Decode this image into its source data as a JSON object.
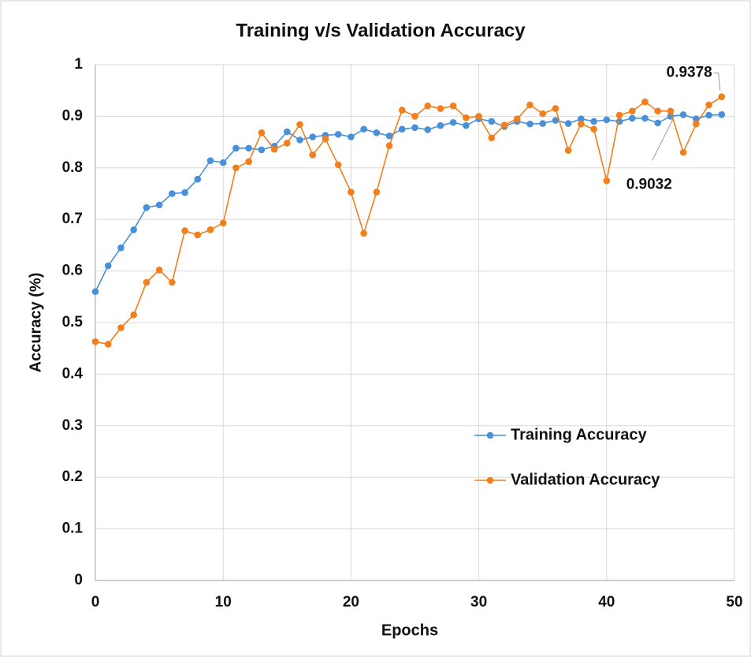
{
  "chart_data": {
    "type": "line",
    "title": "Training v/s Validation Accuracy",
    "x_label": "Epochs",
    "y_label": "Accuracy (%)",
    "x": [
      0,
      1,
      2,
      3,
      4,
      5,
      6,
      7,
      8,
      9,
      10,
      11,
      12,
      13,
      14,
      15,
      16,
      17,
      18,
      19,
      20,
      21,
      22,
      23,
      24,
      25,
      26,
      27,
      28,
      29,
      30,
      31,
      32,
      33,
      34,
      35,
      36,
      37,
      38,
      39,
      40,
      41,
      42,
      43,
      44,
      45,
      46,
      47,
      48,
      49
    ],
    "series": [
      {
        "name": "Training Accuracy",
        "color": "#4a90d9",
        "values": [
          0.56,
          0.61,
          0.645,
          0.68,
          0.723,
          0.728,
          0.75,
          0.752,
          0.778,
          0.814,
          0.81,
          0.838,
          0.838,
          0.835,
          0.842,
          0.87,
          0.854,
          0.86,
          0.863,
          0.865,
          0.86,
          0.875,
          0.868,
          0.862,
          0.875,
          0.878,
          0.874,
          0.882,
          0.888,
          0.882,
          0.895,
          0.89,
          0.88,
          0.89,
          0.885,
          0.886,
          0.892,
          0.886,
          0.895,
          0.89,
          0.893,
          0.89,
          0.896,
          0.896,
          0.887,
          0.9,
          0.903,
          0.895,
          0.902,
          0.9032
        ]
      },
      {
        "name": "Validation Accuracy",
        "color": "#f07f1c",
        "values": [
          0.463,
          0.458,
          0.49,
          0.515,
          0.578,
          0.602,
          0.578,
          0.678,
          0.67,
          0.68,
          0.693,
          0.8,
          0.812,
          0.868,
          0.836,
          0.848,
          0.884,
          0.825,
          0.856,
          0.806,
          0.753,
          0.673,
          0.753,
          0.843,
          0.912,
          0.9,
          0.92,
          0.915,
          0.92,
          0.897,
          0.9,
          0.858,
          0.883,
          0.895,
          0.922,
          0.905,
          0.915,
          0.834,
          0.885,
          0.875,
          0.775,
          0.902,
          0.91,
          0.928,
          0.91,
          0.91,
          0.83,
          0.885,
          0.922,
          0.9378
        ]
      }
    ],
    "annotations": [
      "0.9378",
      "0.9032"
    ],
    "xlim": [
      0,
      50
    ],
    "xticks": [
      0,
      10,
      20,
      30,
      40,
      50
    ],
    "ylim": [
      0,
      1
    ],
    "yticks": [
      0,
      0.1,
      0.2,
      0.3,
      0.4,
      0.5,
      0.6,
      0.7,
      0.8,
      0.9,
      1
    ],
    "grid": true,
    "legend_position": "lower right"
  }
}
